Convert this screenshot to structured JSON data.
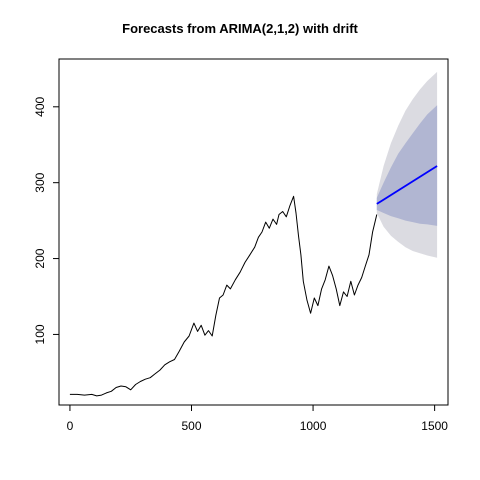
{
  "chart_data": {
    "type": "line",
    "title": "Forecasts from ARIMA(2,1,2) with drift",
    "xlabel": "",
    "ylabel": "",
    "xlim": [
      -45,
      1555
    ],
    "ylim": [
      7,
      463
    ],
    "xticks": [
      0,
      500,
      1000,
      1500
    ],
    "yticks": [
      100,
      200,
      300,
      400
    ],
    "grid": false,
    "colors": {
      "history": "#000000",
      "forecast": "#0000ff",
      "band_95": "#dbdbe1",
      "band_80": "#b1b6d2"
    },
    "series": [
      {
        "role": "history",
        "x": [
          0,
          30,
          60,
          90,
          110,
          130,
          150,
          170,
          190,
          210,
          230,
          250,
          270,
          290,
          310,
          330,
          350,
          370,
          390,
          410,
          430,
          450,
          470,
          490,
          510,
          525,
          540,
          555,
          570,
          585,
          600,
          615,
          630,
          645,
          660,
          680,
          700,
          720,
          740,
          760,
          775,
          790,
          805,
          820,
          835,
          850,
          860,
          875,
          890,
          905,
          920,
          930,
          940,
          950,
          960,
          975,
          990,
          1005,
          1020,
          1035,
          1050,
          1065,
          1080,
          1095,
          1110,
          1125,
          1140,
          1155,
          1170,
          1185,
          1200,
          1215,
          1230,
          1245,
          1262
        ],
        "y": [
          21,
          21,
          20,
          21,
          19,
          20,
          23,
          25,
          30,
          32,
          31,
          27,
          34,
          38,
          41,
          43,
          48,
          53,
          60,
          64,
          67,
          78,
          90,
          98,
          115,
          104,
          112,
          99,
          105,
          98,
          125,
          148,
          152,
          165,
          160,
          172,
          182,
          195,
          205,
          215,
          228,
          235,
          248,
          240,
          252,
          245,
          258,
          262,
          255,
          270,
          282,
          260,
          230,
          205,
          170,
          145,
          128,
          148,
          138,
          160,
          172,
          190,
          178,
          160,
          138,
          156,
          150,
          170,
          152,
          165,
          175,
          190,
          205,
          235,
          258
        ]
      },
      {
        "role": "forecast",
        "x": [
          1262,
          1510
        ],
        "y": [
          272,
          322
        ]
      }
    ],
    "bands": [
      {
        "level": "95",
        "x": [
          1262,
          1290,
          1320,
          1350,
          1380,
          1410,
          1440,
          1470,
          1510
        ],
        "lower": [
          260,
          242,
          230,
          222,
          215,
          210,
          207,
          204,
          201
        ],
        "upper": [
          285,
          322,
          352,
          375,
          395,
          410,
          423,
          434,
          446
        ]
      },
      {
        "level": "80",
        "x": [
          1262,
          1290,
          1320,
          1350,
          1380,
          1410,
          1440,
          1470,
          1510
        ],
        "lower": [
          264,
          260,
          256,
          253,
          250,
          248,
          246,
          245,
          243
        ],
        "upper": [
          280,
          300,
          320,
          338,
          352,
          365,
          378,
          390,
          402
        ]
      }
    ]
  }
}
